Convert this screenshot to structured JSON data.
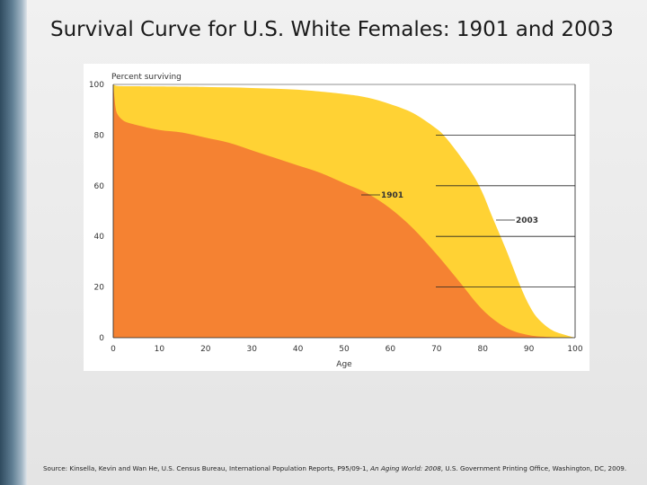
{
  "slide": {
    "title": "Survival Curve for U.S. White Females: 1901 and 2003"
  },
  "source": {
    "prefix": "Source: Kinsella, Kevin and Wan He, U.S. Census Bureau, International Population Reports, P95/09-1, ",
    "italic": "An Aging World: 2008",
    "suffix": ", U.S. Government Printing Office, Washington, DC, 2009."
  },
  "colors": {
    "c1901": "#f58232",
    "c2003": "#ffd234"
  },
  "chart_data": {
    "type": "area",
    "title": "",
    "ylabel": "Percent surviving",
    "xlabel": "Age",
    "xlim": [
      0,
      100
    ],
    "ylim": [
      0,
      100
    ],
    "xticks": [
      0,
      10,
      20,
      30,
      40,
      50,
      60,
      70,
      80,
      90,
      100
    ],
    "yticks": [
      0,
      20,
      40,
      60,
      80,
      100
    ],
    "grid": "right-side horizontal lines at 20, 40, 60, 80",
    "series": [
      {
        "name": "1901",
        "color": "#f58232",
        "x": [
          0,
          0.5,
          1,
          2,
          3,
          5,
          10,
          15,
          20,
          25,
          30,
          35,
          40,
          45,
          50,
          55,
          60,
          65,
          70,
          75,
          80,
          85,
          90,
          95,
          100
        ],
        "y": [
          100,
          91,
          88,
          86,
          85,
          84,
          82,
          81,
          79,
          77,
          74,
          71,
          68,
          65,
          61,
          57,
          51,
          43,
          33,
          22,
          11,
          4,
          1,
          0.2,
          0
        ]
      },
      {
        "name": "2003",
        "color": "#ffd234",
        "x": [
          0,
          1,
          5,
          10,
          20,
          30,
          40,
          50,
          55,
          60,
          65,
          70,
          72,
          75,
          78,
          80,
          82,
          85,
          88,
          90,
          92,
          95,
          98,
          100
        ],
        "y": [
          100,
          99.4,
          99.3,
          99.2,
          99.0,
          98.6,
          97.9,
          96.2,
          94.8,
          92.2,
          88.6,
          82.5,
          79.0,
          72.0,
          64.0,
          57.0,
          48.0,
          35.0,
          21.0,
          13.0,
          7.5,
          3.0,
          1.0,
          0
        ]
      }
    ]
  }
}
